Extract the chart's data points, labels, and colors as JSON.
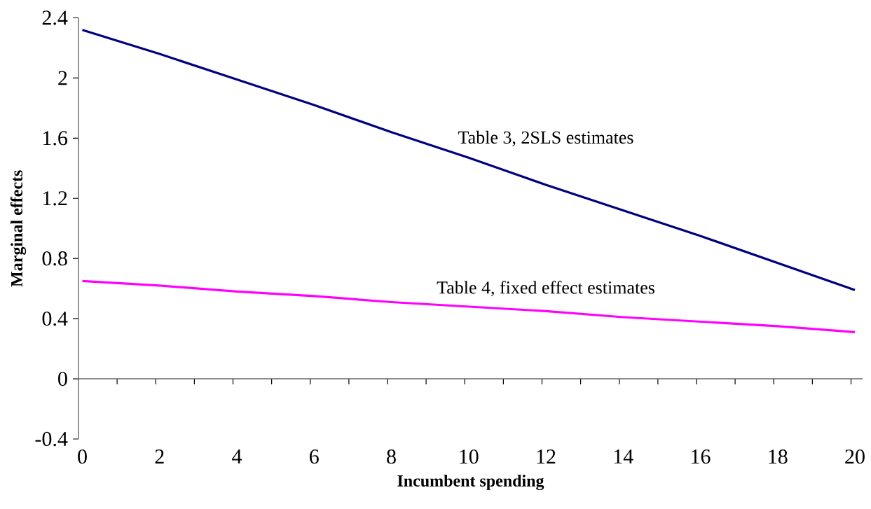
{
  "chart_data": {
    "type": "line",
    "xlabel": "Incumbent spending",
    "ylabel": "Marginal effects",
    "x": [
      0,
      2,
      4,
      6,
      8,
      10,
      12,
      14,
      16,
      18,
      20
    ],
    "series": [
      {
        "name": "Table 3, 2SLS estimates",
        "color": "#000080",
        "values": [
          2.32,
          2.16,
          1.99,
          1.82,
          1.64,
          1.47,
          1.29,
          1.12,
          0.95,
          0.77,
          0.59
        ]
      },
      {
        "name": "Table 4, fixed effect estimates",
        "color": "#ff00ff",
        "values": [
          0.65,
          0.62,
          0.58,
          0.55,
          0.51,
          0.48,
          0.45,
          0.41,
          0.38,
          0.35,
          0.31
        ]
      }
    ],
    "xlim": [
      -0.1,
      20.2
    ],
    "xticks": [
      0,
      2,
      4,
      6,
      8,
      10,
      12,
      14,
      16,
      18,
      20,
      {
        "value": 0.9,
        "label": null
      },
      {
        "value": 1.9,
        "label": null
      },
      {
        "value": 2.9,
        "label": null
      },
      {
        "value": 3.9,
        "label": null
      },
      {
        "value": 4.9,
        "label": null
      },
      {
        "value": 5.9,
        "label": null
      },
      {
        "value": 6.9,
        "label": null
      },
      {
        "value": 7.9,
        "label": null
      },
      {
        "value": 8.9,
        "label": null
      },
      {
        "value": 9.9,
        "label": null
      },
      {
        "value": 10.9,
        "label": null
      },
      {
        "value": 11.9,
        "label": null
      },
      {
        "value": 12.9,
        "label": null
      },
      {
        "value": 13.9,
        "label": null
      },
      {
        "value": 14.9,
        "label": null
      },
      {
        "value": 15.9,
        "label": null
      },
      {
        "value": 16.9,
        "label": null
      },
      {
        "value": 17.9,
        "label": null
      },
      {
        "value": 18.9,
        "label": null
      },
      {
        "value": 19.9,
        "label": null
      }
    ],
    "ylim": [
      -0.4,
      2.4
    ],
    "yticks": [
      -0.4,
      0,
      0.4,
      0.8,
      1.2,
      1.6,
      2,
      2.4
    ],
    "legend": false
  }
}
